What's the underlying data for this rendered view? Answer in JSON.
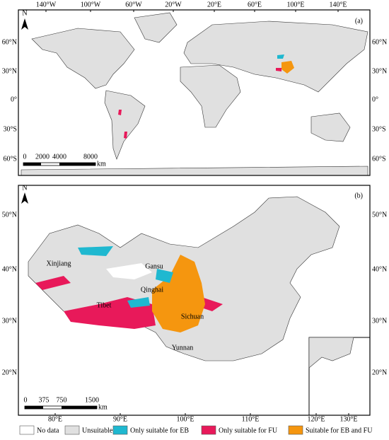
{
  "panel_a": {
    "label": "(a)",
    "north": "N",
    "top_ticks": [
      "140°W",
      "100°W",
      "60°W",
      "20°W",
      "20°E",
      "60°E",
      "100°E",
      "140°E"
    ],
    "side_ticks": [
      "60°N",
      "30°N",
      "0°",
      "30°S",
      "60°S"
    ],
    "scale": [
      "0",
      "2000",
      "4000",
      "8000"
    ],
    "scale_unit": "km"
  },
  "panel_b": {
    "label": "(b)",
    "north": "N",
    "bottom_ticks": [
      "80°E",
      "90°E",
      "100°E",
      "110°E",
      "120°E",
      "130°E"
    ],
    "side_ticks": [
      "50°N",
      "40°N",
      "30°N",
      "20°N"
    ],
    "regions": [
      "Xinjiang",
      "Gansu",
      "Qinghai",
      "Tibet",
      "Sichuan",
      "Yunnan"
    ],
    "scale": [
      "0",
      "375",
      "750",
      "1500"
    ],
    "scale_unit": "km"
  },
  "legend": [
    {
      "name": "No data",
      "color": "#ffffff"
    },
    {
      "name": "Unsuitable",
      "color": "#e0e0e0"
    },
    {
      "name": "Only suitable for EB",
      "color": "#1fb8d0"
    },
    {
      "name": "Only suitable for FU",
      "color": "#e8195a"
    },
    {
      "name": "Suitable for EB and FU",
      "color": "#f5960f"
    }
  ]
}
